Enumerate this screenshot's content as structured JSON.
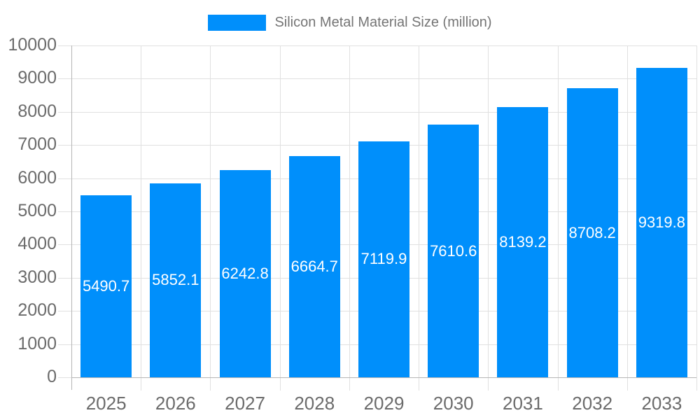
{
  "legend": {
    "label": "Silicon Metal Material Size (million)"
  },
  "colors": {
    "bar": "#008FFB",
    "grid": "#e0e0e0",
    "axis": "#b6b6b6",
    "tick_label": "#6b6b6b",
    "legend_text": "#757575",
    "value_label": "#ffffff"
  },
  "chart_data": {
    "type": "bar",
    "title": "",
    "xlabel": "",
    "ylabel": "",
    "categories": [
      "2025",
      "2026",
      "2027",
      "2028",
      "2029",
      "2030",
      "2031",
      "2032",
      "2033"
    ],
    "series": [
      {
        "name": "Silicon Metal Material Size (million)",
        "values": [
          5490.7,
          5852.1,
          6242.8,
          6664.7,
          7119.9,
          7610.6,
          8139.2,
          8708.2,
          9319.8
        ]
      }
    ],
    "value_labels": [
      "5490.7",
      "5852.1",
      "6242.8",
      "6664.7",
      "7119.9",
      "7610.6",
      "8139.2",
      "8708.2",
      "9319.8"
    ],
    "ylim": [
      0,
      10000
    ],
    "yticks": [
      0,
      1000,
      2000,
      3000,
      4000,
      5000,
      6000,
      7000,
      8000,
      9000,
      10000
    ],
    "ytick_labels": [
      "0",
      "1000",
      "2000",
      "3000",
      "4000",
      "5000",
      "6000",
      "7000",
      "8000",
      "9000",
      "10000"
    ],
    "grid": true,
    "legend_position": "top-center"
  }
}
